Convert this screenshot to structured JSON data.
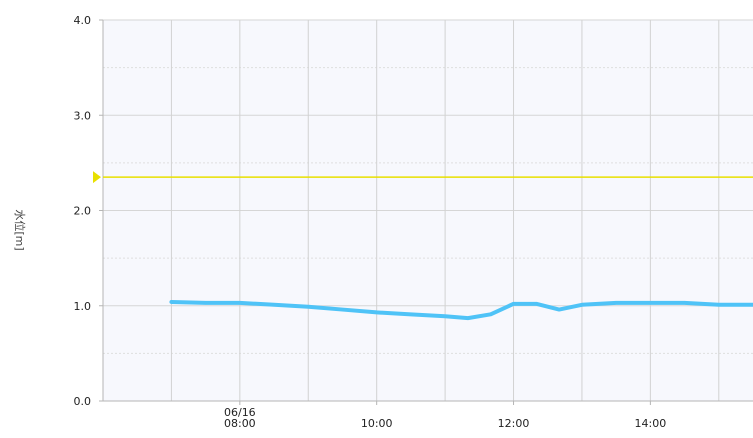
{
  "chart_data": {
    "type": "line",
    "ylabel": "水位[m]",
    "ylim": [
      0,
      4
    ],
    "y_ticks": [
      "0.0",
      "1.0",
      "2.0",
      "3.0",
      "4.0"
    ],
    "x_tick_labels": [
      {
        "time": "08:00",
        "label": "06/16",
        "label2": "08:00"
      },
      {
        "time": "10:00",
        "label": "10:00"
      },
      {
        "time": "12:00",
        "label": "12:00"
      },
      {
        "time": "14:00",
        "label": "14:00"
      }
    ],
    "xlim": [
      "06:00",
      "15:30"
    ],
    "grid": true,
    "threshold": {
      "value": 2.35,
      "color": "#e8e000"
    },
    "series": [
      {
        "color": "#4fc3f7",
        "points": [
          {
            "x": "07:00",
            "y": 1.04
          },
          {
            "x": "07:30",
            "y": 1.03
          },
          {
            "x": "08:00",
            "y": 1.03
          },
          {
            "x": "08:30",
            "y": 1.01
          },
          {
            "x": "09:00",
            "y": 0.99
          },
          {
            "x": "09:30",
            "y": 0.96
          },
          {
            "x": "10:00",
            "y": 0.93
          },
          {
            "x": "10:30",
            "y": 0.91
          },
          {
            "x": "11:00",
            "y": 0.89
          },
          {
            "x": "11:20",
            "y": 0.87
          },
          {
            "x": "11:40",
            "y": 0.91
          },
          {
            "x": "12:00",
            "y": 1.02
          },
          {
            "x": "12:20",
            "y": 1.02
          },
          {
            "x": "12:40",
            "y": 0.96
          },
          {
            "x": "13:00",
            "y": 1.01
          },
          {
            "x": "13:30",
            "y": 1.03
          },
          {
            "x": "14:00",
            "y": 1.03
          },
          {
            "x": "14:30",
            "y": 1.03
          },
          {
            "x": "15:00",
            "y": 1.01
          },
          {
            "x": "15:30",
            "y": 1.01
          }
        ]
      }
    ]
  }
}
